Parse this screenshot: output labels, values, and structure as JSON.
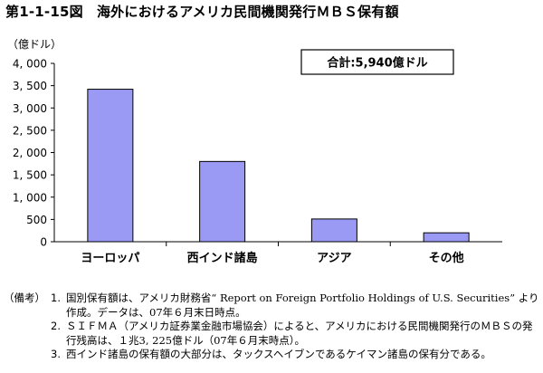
{
  "figure": {
    "title": "第1-1-15図　海外におけるアメリカ民間機関発行ＭＢＳ保有額"
  },
  "chart_data": {
    "type": "bar",
    "ylabel": "（億ドル）",
    "xlabel": "",
    "ylim": [
      0,
      4000
    ],
    "yticks": [
      0,
      500,
      1000,
      1500,
      2000,
      2500,
      3000,
      3500,
      4000
    ],
    "ytick_labels": [
      "0",
      "500",
      "1, 000",
      "1, 500",
      "2, 000",
      "2, 500",
      "3, 000",
      "3, 500",
      "4, 000"
    ],
    "categories": [
      "ヨーロッパ",
      "西インド諸島",
      "アジア",
      "その他"
    ],
    "values": [
      3420,
      1800,
      510,
      200
    ],
    "annotation": "合計:5,940億ドル",
    "grid": false,
    "bar_color": "#9a9af5",
    "bar_edge_color": "#000000"
  },
  "notes": {
    "lead": "（備考）",
    "items": [
      {
        "num": "1.",
        "text": "国別保有額は、アメリカ財務省“ Report on Foreign Portfolio Holdings of U.S. Securities” より作成。データは、07年６月末日時点。"
      },
      {
        "num": "2.",
        "text": "ＳＩＦＭＡ（アメリカ証券業金融市場協会）によると、アメリカにおける民間機関発行のＭＢＳの発行残高は、１兆3, 225億ドル（07年６月末時点）。"
      },
      {
        "num": "3.",
        "text": "西インド諸島の保有額の大部分は、タックスヘイブンであるケイマン諸島の保有分である。"
      }
    ]
  }
}
